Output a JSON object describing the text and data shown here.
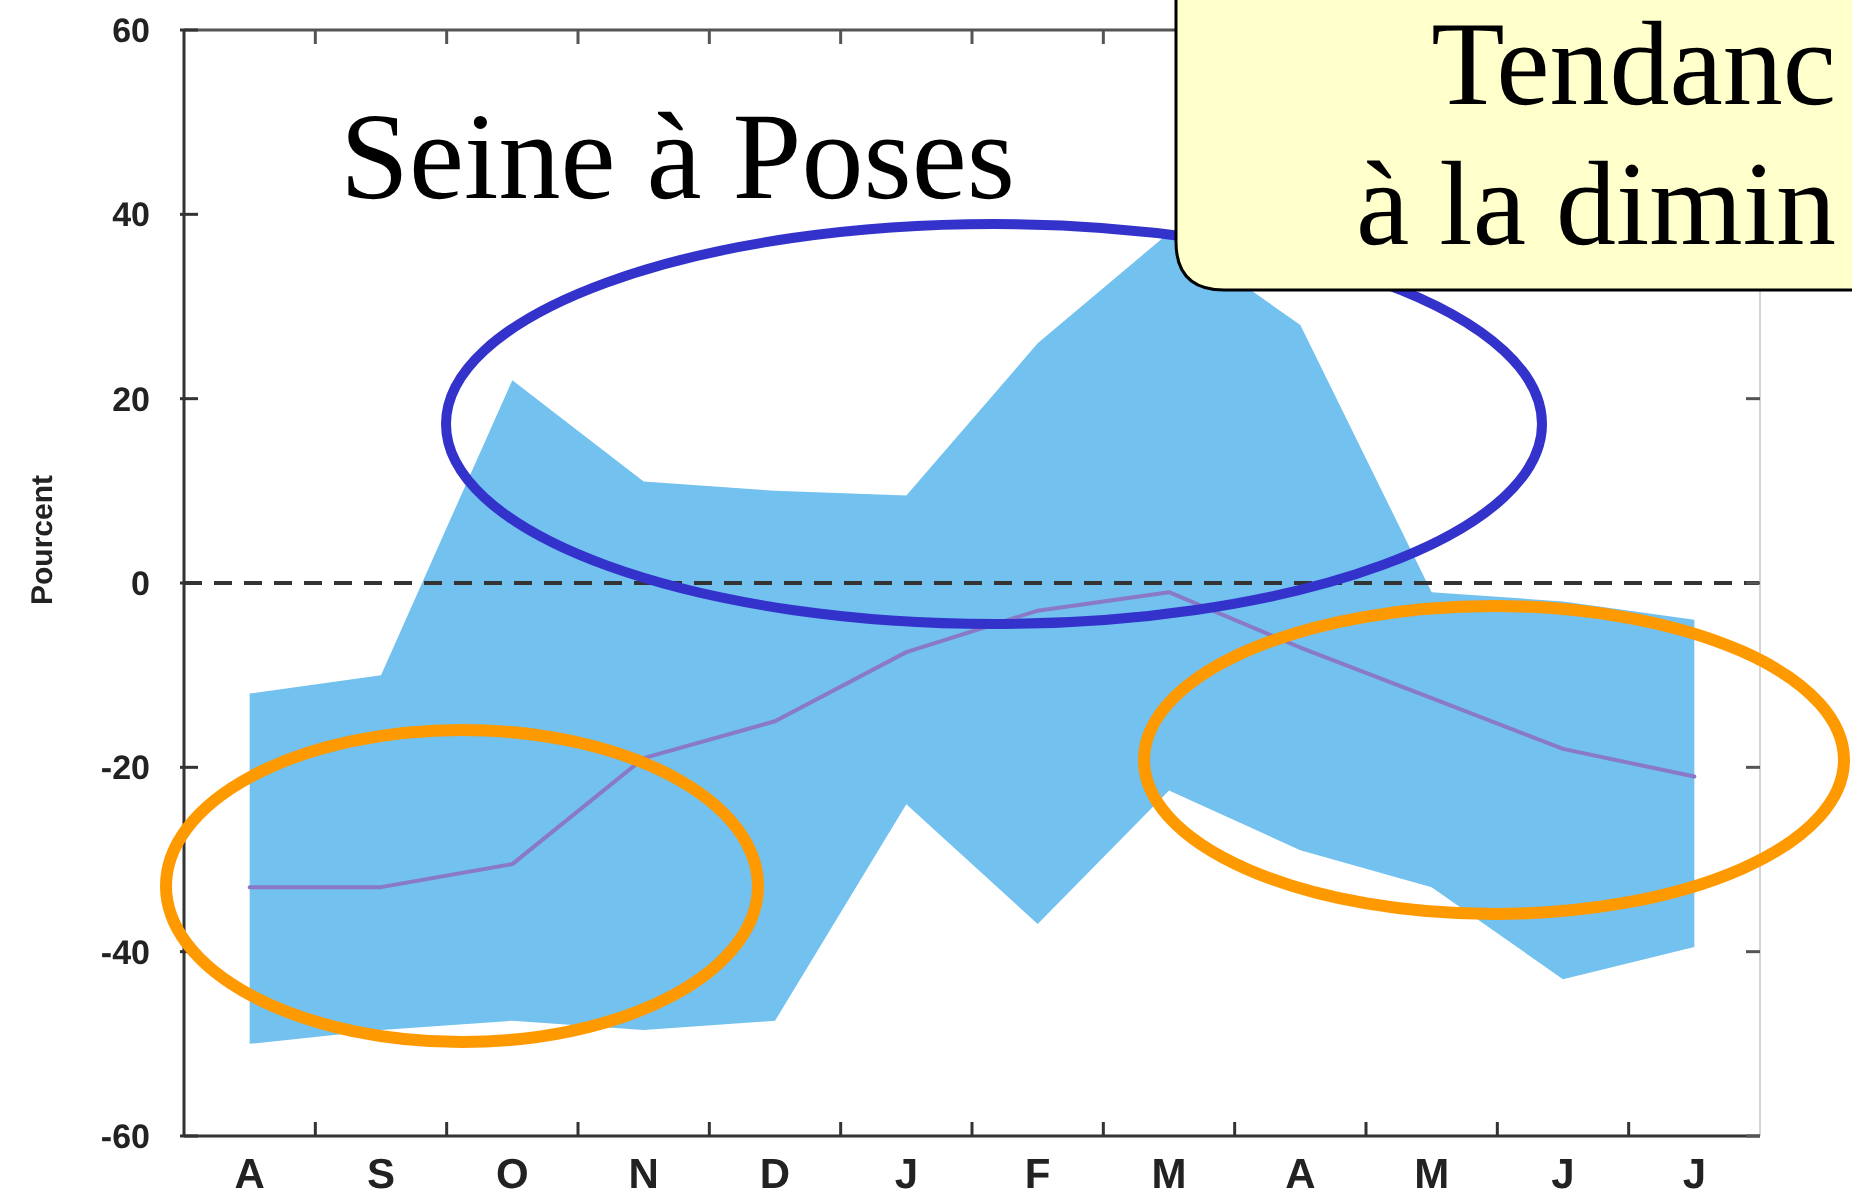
{
  "chart_data": {
    "type": "line",
    "title": "Seine à Poses",
    "ylabel": "Pourcent",
    "color": "#72c1ee",
    "categories": [
      "A",
      "S",
      "O",
      "N",
      "D",
      "J",
      "F",
      "M",
      "A",
      "M",
      "J",
      "J"
    ],
    "series": [
      {
        "color": "#8a78c8",
        "values": [
          -33,
          -33,
          -30.5,
          -19,
          -15,
          -7.5,
          -3,
          -1,
          -7,
          -12.5,
          -18,
          -21
        ],
        "lower": [
          -50,
          -48.5,
          -47.5,
          -48.5,
          -47.5,
          -24,
          -37,
          -22.5,
          -29,
          -33,
          -43,
          -39.5
        ],
        "upper": [
          -12,
          -10,
          22,
          11,
          10,
          9.5,
          26,
          38,
          28,
          -1,
          -2,
          -4
        ]
      }
    ],
    "ylim": [
      -60,
      60
    ],
    "yticks": [
      -60,
      -40,
      -20,
      0,
      20,
      40,
      60
    ],
    "ref_lines": [
      {
        "axis": "y",
        "value": 0,
        "color": "#333333",
        "line_style": "dashed"
      }
    ],
    "annotations": [
      "Tendanc",
      "à la dimin"
    ]
  }
}
